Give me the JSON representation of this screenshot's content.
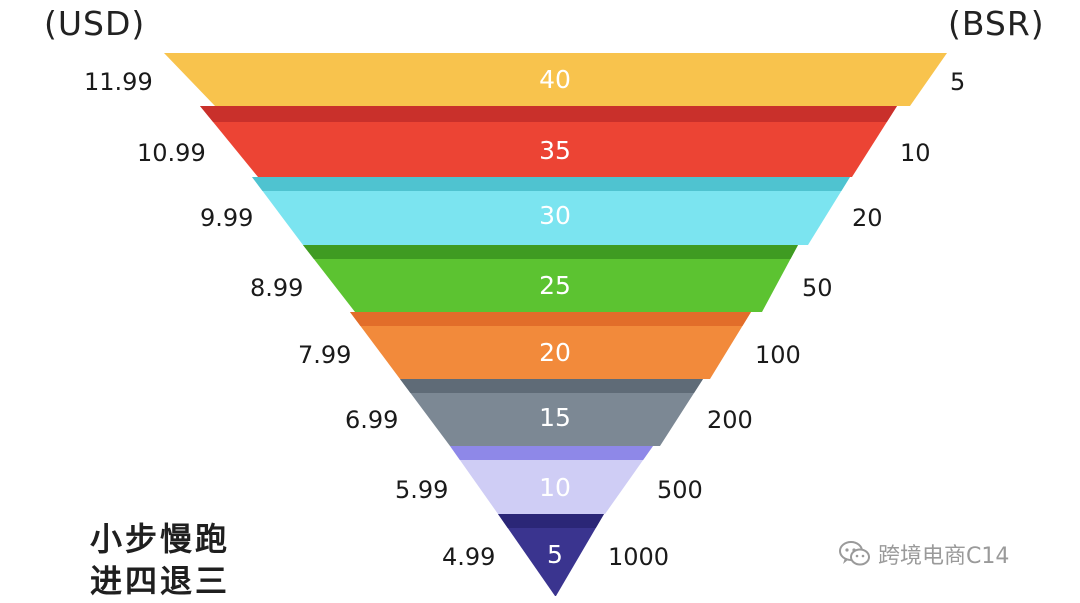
{
  "units": {
    "left": "(USD)",
    "right": "(BSR)"
  },
  "levels": [
    {
      "price": "11.99",
      "center": "40",
      "bsr": "5",
      "color": "#f8c34d",
      "shade": "#fbd985"
    },
    {
      "price": "10.99",
      "center": "35",
      "bsr": "10",
      "color": "#ec4434",
      "shade": "#c9302b"
    },
    {
      "price": "9.99",
      "center": "30",
      "bsr": "20",
      "color": "#7be4f0",
      "shade": "#4fc3d0"
    },
    {
      "price": "8.99",
      "center": "25",
      "bsr": "50",
      "color": "#5cc331",
      "shade": "#3f9b22"
    },
    {
      "price": "7.99",
      "center": "20",
      "bsr": "100",
      "color": "#f28a3b",
      "shade": "#e26d2a"
    },
    {
      "price": "6.99",
      "center": "15",
      "bsr": "200",
      "color": "#7c8894",
      "shade": "#5f6b77"
    },
    {
      "price": "5.99",
      "center": "10",
      "bsr": "500",
      "color": "#cfcdf5",
      "shade": "#8e88e8"
    },
    {
      "price": "4.99",
      "center": "5",
      "bsr": "1000",
      "color": "#3a348f",
      "shade": "#2b2677"
    }
  ],
  "slogan": {
    "line1": "小步慢跑",
    "line2": "进四退三"
  },
  "watermark": {
    "icon": "wechat-icon",
    "text": "跨境电商C14"
  }
}
